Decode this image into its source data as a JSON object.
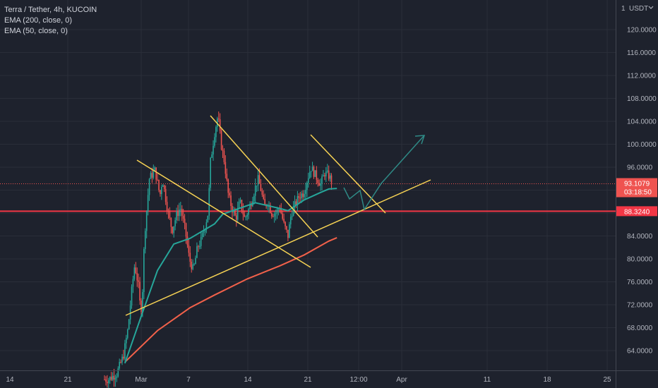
{
  "header": {
    "symbol_line": "Terra / Tether, 4h, KUCOIN",
    "indicator_1": "EMA (200, close, 0)",
    "indicator_2": "EMA (50, close, 0)"
  },
  "price_axis": {
    "top_number": "1",
    "currency": "USDT",
    "currency_icon": "chevron-down-icon",
    "labels": [
      "120.0000",
      "116.0000",
      "112.0000",
      "108.0000",
      "104.0000",
      "100.0000",
      "96.0000",
      "84.0000",
      "80.0000",
      "76.0000",
      "72.0000",
      "68.0000",
      "64.0000"
    ]
  },
  "time_axis": {
    "labels": [
      "14",
      "21",
      "Mar",
      "7",
      "14",
      "21",
      "12:00",
      "Apr",
      "11",
      "18",
      "25"
    ]
  },
  "tags": {
    "last_price": "93.1079",
    "countdown": "03:18:50",
    "level": "88.3240"
  },
  "colors": {
    "background": "#1e222d",
    "up_candle": "#26a69a",
    "down_candle": "#ef5350",
    "ema200": "#f2614a",
    "ema50": "#26a69a",
    "support_line": "#f23645",
    "trendlines": "#f7d354",
    "projection": "#2f8a86"
  },
  "chart_data": {
    "type": "candlestick",
    "title": "Terra / Tether, 4h, KUCOIN",
    "ylim": [
      60,
      122
    ],
    "yticks": [
      64,
      68,
      72,
      76,
      80,
      84,
      96,
      100,
      104,
      108,
      112,
      116,
      120
    ],
    "last_price": 93.1079,
    "horizontal_level": 88.324,
    "series": [
      {
        "name": "EMA (200, close, 0)",
        "points": [
          [
            "Feb 27",
            62.0
          ],
          [
            "Mar 3",
            67.5
          ],
          [
            "Mar 7",
            71.5
          ],
          [
            "Mar 10",
            73.7
          ],
          [
            "Mar 14",
            76.5
          ],
          [
            "Mar 18",
            78.8
          ],
          [
            "Mar 21",
            80.7
          ],
          [
            "Mar 24",
            83.1
          ],
          [
            "Mar 25",
            83.7
          ]
        ]
      },
      {
        "name": "EMA (50, close, 0)",
        "points": [
          [
            "Feb 27",
            61.8
          ],
          [
            "Mar 1",
            70.0
          ],
          [
            "Mar 3",
            78.0
          ],
          [
            "Mar 5",
            82.6
          ],
          [
            "Mar 7",
            83.6
          ],
          [
            "Mar 10",
            86.1
          ],
          [
            "Mar 11",
            87.8
          ],
          [
            "Mar 13",
            88.8
          ],
          [
            "Mar 15",
            89.8
          ],
          [
            "Mar 18",
            88.8
          ],
          [
            "Mar 19",
            88.4
          ],
          [
            "Mar 21",
            90.3
          ],
          [
            "Mar 23",
            91.6
          ],
          [
            "Mar 24",
            92.2
          ],
          [
            "Mar 25",
            92.3
          ]
        ]
      }
    ]
  }
}
